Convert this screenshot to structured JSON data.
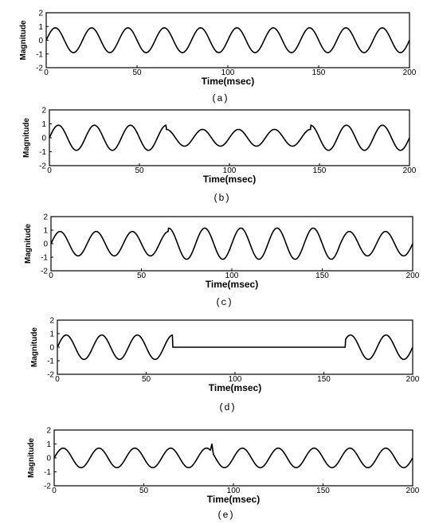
{
  "chart_data": [
    {
      "type": "line",
      "panel": "(a)",
      "caption": "(a)",
      "xlabel": "Time(msec)",
      "ylabel": "Magnitude",
      "xlim": [
        0,
        200
      ],
      "ylim": [
        -2,
        2
      ],
      "x_ticks": [
        "0",
        "50",
        "100",
        "150",
        "200"
      ],
      "y_ticks": [
        "2",
        "1",
        "0",
        "-1",
        "-2"
      ],
      "signal": "sine",
      "amplitude": 0.9,
      "frequency_hz": 50,
      "duration_msec": 200
    },
    {
      "type": "line",
      "panel": "(b)",
      "caption": "(b)",
      "xlabel": "Time(msec)",
      "ylabel": "Magnitude",
      "xlim": [
        0,
        200
      ],
      "ylim": [
        -2,
        2
      ],
      "x_ticks": [
        "0",
        "50",
        "100",
        "150",
        "200"
      ],
      "y_ticks": [
        "2",
        "1",
        "0",
        "-1",
        "-2"
      ],
      "signal": "sine with sag",
      "amplitude": 0.9,
      "frequency_hz": 50,
      "event_start_msec": 65,
      "event_end_msec": 145,
      "event_amplitude": 0.6
    },
    {
      "type": "line",
      "panel": "(c)",
      "caption": "(c)",
      "xlabel": "Time(msec)",
      "ylabel": "Magnitude",
      "xlim": [
        0,
        200
      ],
      "ylim": [
        -2,
        2
      ],
      "x_ticks": [
        "0",
        "50",
        "100",
        "150",
        "200"
      ],
      "y_ticks": [
        "2",
        "1",
        "0",
        "-1",
        "-2"
      ],
      "signal": "sine with swell",
      "amplitude": 0.9,
      "frequency_hz": 50,
      "event_start_msec": 65,
      "event_end_msec": 160,
      "event_amplitude": 1.15
    },
    {
      "type": "line",
      "panel": "(d)",
      "caption": "(d)",
      "xlabel": "Time(msec)",
      "ylabel": "Magnitude",
      "xlim": [
        0,
        200
      ],
      "ylim": [
        -2,
        2
      ],
      "x_ticks": [
        "0",
        "50",
        "100",
        "150",
        "200"
      ],
      "y_ticks": [
        "2",
        "1",
        "0",
        "-1",
        "-2"
      ],
      "signal": "sine with interruption",
      "amplitude": 0.9,
      "frequency_hz": 50,
      "event_start_msec": 65,
      "event_end_msec": 162,
      "event_amplitude": 0
    },
    {
      "type": "line",
      "panel": "(e)",
      "caption": "(e)",
      "xlabel": "Time(msec)",
      "ylabel": "Magnitude",
      "xlim": [
        0,
        200
      ],
      "ylim": [
        -2,
        2
      ],
      "x_ticks": [
        "0",
        "50",
        "100",
        "150",
        "200"
      ],
      "y_ticks": [
        "2",
        "1",
        "0",
        "-1",
        "-2"
      ],
      "signal": "sine with spike",
      "amplitude": 0.7,
      "frequency_hz": 50,
      "spike_time_msec": 88,
      "spike_magnitude": 1.3
    }
  ],
  "colors": {
    "line": "#000000",
    "axes": "#000000",
    "background": "#ffffff"
  }
}
